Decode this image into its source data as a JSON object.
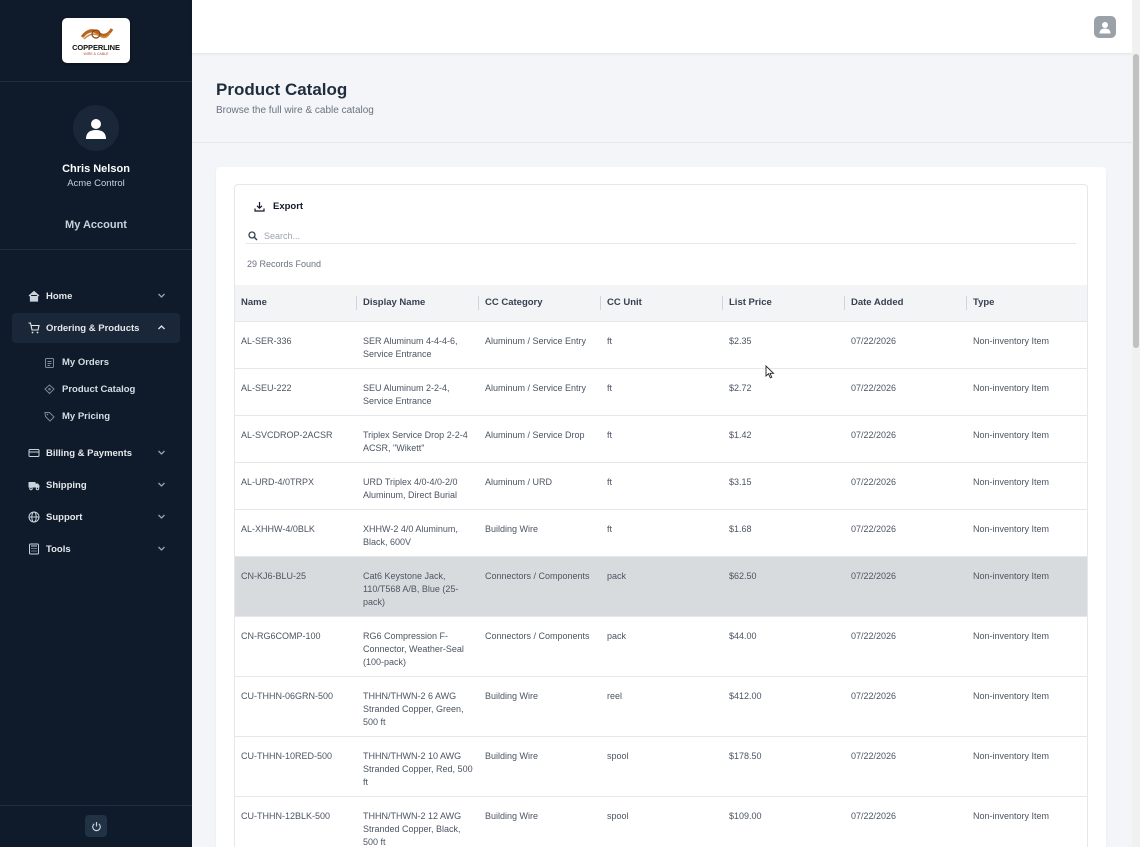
{
  "brand": {
    "logo_text": "COPPERLINE",
    "logo_sub": "WIRE & CABLE"
  },
  "user": {
    "name": "Chris Nelson",
    "company": "Acme Control",
    "account_link": "My Account",
    "avatar_icon": "user-icon"
  },
  "nav": {
    "items": [
      {
        "label": "Home",
        "icon": "home-icon"
      },
      {
        "label": "Ordering & Products",
        "icon": "cart-icon",
        "expanded": true
      },
      {
        "label": "Billing & Payments",
        "icon": "billing-icon"
      },
      {
        "label": "Shipping",
        "icon": "shipping-icon"
      },
      {
        "label": "Support",
        "icon": "globe-icon"
      },
      {
        "label": "Tools",
        "icon": "calculator-icon"
      }
    ],
    "subitems": [
      {
        "label": "My Orders",
        "icon": "clipboard-icon"
      },
      {
        "label": "Product Catalog",
        "icon": "catalog-icon"
      },
      {
        "label": "My Pricing",
        "icon": "tag-icon"
      }
    ]
  },
  "page": {
    "title": "Product Catalog",
    "subtitle": "Browse the full wire & cable catalog"
  },
  "toolbar": {
    "export_label": "Export",
    "search_placeholder": "Search...",
    "records_text": "29 Records Found"
  },
  "table": {
    "columns": [
      "Name",
      "Display Name",
      "CC Category",
      "CC Unit",
      "List Price",
      "Date Added",
      "Type"
    ],
    "rows": [
      [
        "AL-SER-336",
        "SER Aluminum 4-4-4-6, Service Entrance",
        "Aluminum / Service Entry",
        "ft",
        "$2.35",
        "07/22/2026",
        "Non-inventory Item"
      ],
      [
        "AL-SEU-222",
        "SEU Aluminum 2-2-4, Service Entrance",
        "Aluminum / Service Entry",
        "ft",
        "$2.72",
        "07/22/2026",
        "Non-inventory Item"
      ],
      [
        "AL-SVCDROP-2ACSR",
        "Triplex Service Drop 2-2-4 ACSR, \"Wikett\"",
        "Aluminum / Service Drop",
        "ft",
        "$1.42",
        "07/22/2026",
        "Non-inventory Item"
      ],
      [
        "AL-URD-4/0TRPX",
        "URD Triplex 4/0-4/0-2/0 Aluminum, Direct Burial",
        "Aluminum / URD",
        "ft",
        "$3.15",
        "07/22/2026",
        "Non-inventory Item"
      ],
      [
        "AL-XHHW-4/0BLK",
        "XHHW-2 4/0 Aluminum, Black, 600V",
        "Building Wire",
        "ft",
        "$1.68",
        "07/22/2026",
        "Non-inventory Item"
      ],
      [
        "CN-KJ6-BLU-25",
        "Cat6 Keystone Jack, 110/T568 A/B, Blue (25-pack)",
        "Connectors / Components",
        "pack",
        "$62.50",
        "07/22/2026",
        "Non-inventory Item"
      ],
      [
        "CN-RG6COMP-100",
        "RG6 Compression F-Connector, Weather-Seal (100-pack)",
        "Connectors / Components",
        "pack",
        "$44.00",
        "07/22/2026",
        "Non-inventory Item"
      ],
      [
        "CU-THHN-06GRN-500",
        "THHN/THWN-2 6 AWG Stranded Copper, Green, 500 ft",
        "Building Wire",
        "reel",
        "$412.00",
        "07/22/2026",
        "Non-inventory Item"
      ],
      [
        "CU-THHN-10RED-500",
        "THHN/THWN-2 10 AWG Stranded Copper, Red, 500 ft",
        "Building Wire",
        "spool",
        "$178.50",
        "07/22/2026",
        "Non-inventory Item"
      ],
      [
        "CU-THHN-12BLK-500",
        "THHN/THWN-2 12 AWG Stranded Copper, Black, 500 ft",
        "Building Wire",
        "spool",
        "$109.00",
        "07/22/2026",
        "Non-inventory Item"
      ]
    ],
    "highlighted_row": 5
  },
  "colors": {
    "sidebar_bg": "#0f1b2a",
    "active_nav_bg": "#1a2739",
    "highlight_row": "#d8dbde"
  }
}
